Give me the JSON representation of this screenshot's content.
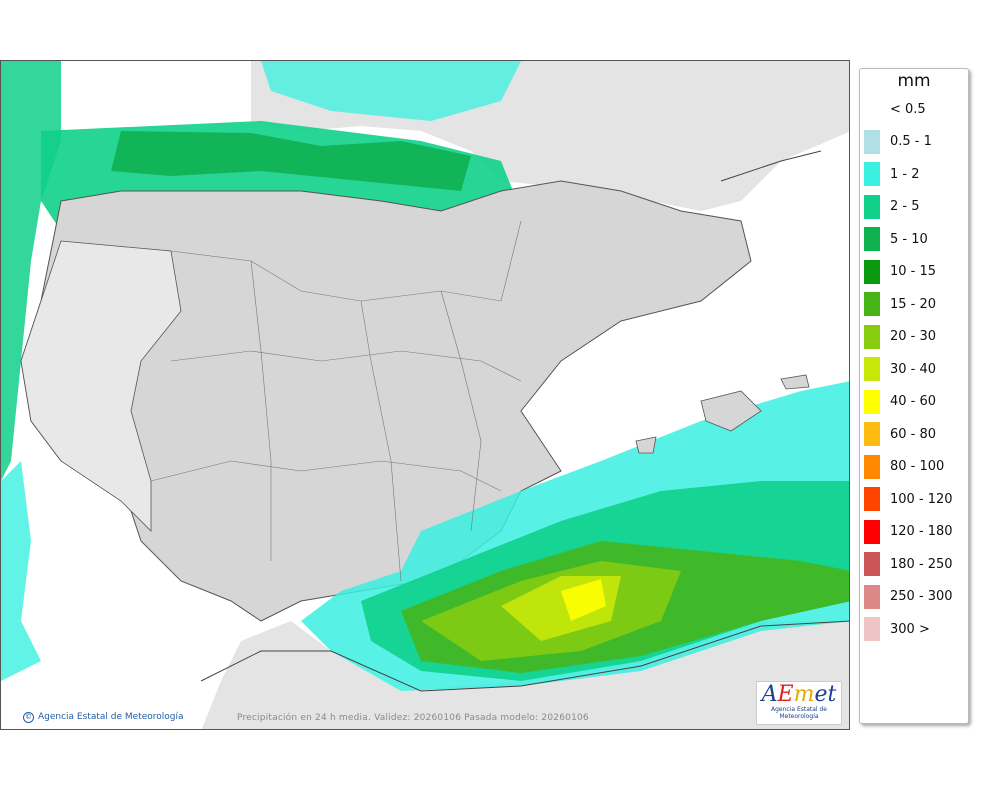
{
  "map": {
    "caption": "Precipitación en 24 h media. Validez: 20260106 Pasada modelo: 20260106",
    "credit": "Agencia Estatal de Meteorología",
    "logo_text": "AEmet",
    "logo_subtext": "Agencia Estatal de Meteorología"
  },
  "legend": {
    "unit": "mm",
    "items": [
      {
        "label": "< 0.5",
        "color": "#ffffff"
      },
      {
        "label": "0.5 - 1",
        "color": "#b0e0e6"
      },
      {
        "label": "1 - 2",
        "color": "#3af0e0"
      },
      {
        "label": "2 - 5",
        "color": "#10d08a"
      },
      {
        "label": "5 - 10",
        "color": "#0fb050"
      },
      {
        "label": "10 - 15",
        "color": "#0a9a10"
      },
      {
        "label": "15 - 20",
        "color": "#46b416"
      },
      {
        "label": "20 - 30",
        "color": "#88cc10"
      },
      {
        "label": "30 - 40",
        "color": "#c8e80a"
      },
      {
        "label": "40 - 60",
        "color": "#ffff00"
      },
      {
        "label": "60 - 80",
        "color": "#ffbb10"
      },
      {
        "label": "80 - 100",
        "color": "#ff8800"
      },
      {
        "label": "100 - 120",
        "color": "#ff4400"
      },
      {
        "label": "120 - 180",
        "color": "#ff0000"
      },
      {
        "label": "180 - 250",
        "color": "#cc5555"
      },
      {
        "label": "250 - 300",
        "color": "#dd8888"
      },
      {
        "label": "300 >",
        "color": "#eec4c4"
      }
    ]
  }
}
